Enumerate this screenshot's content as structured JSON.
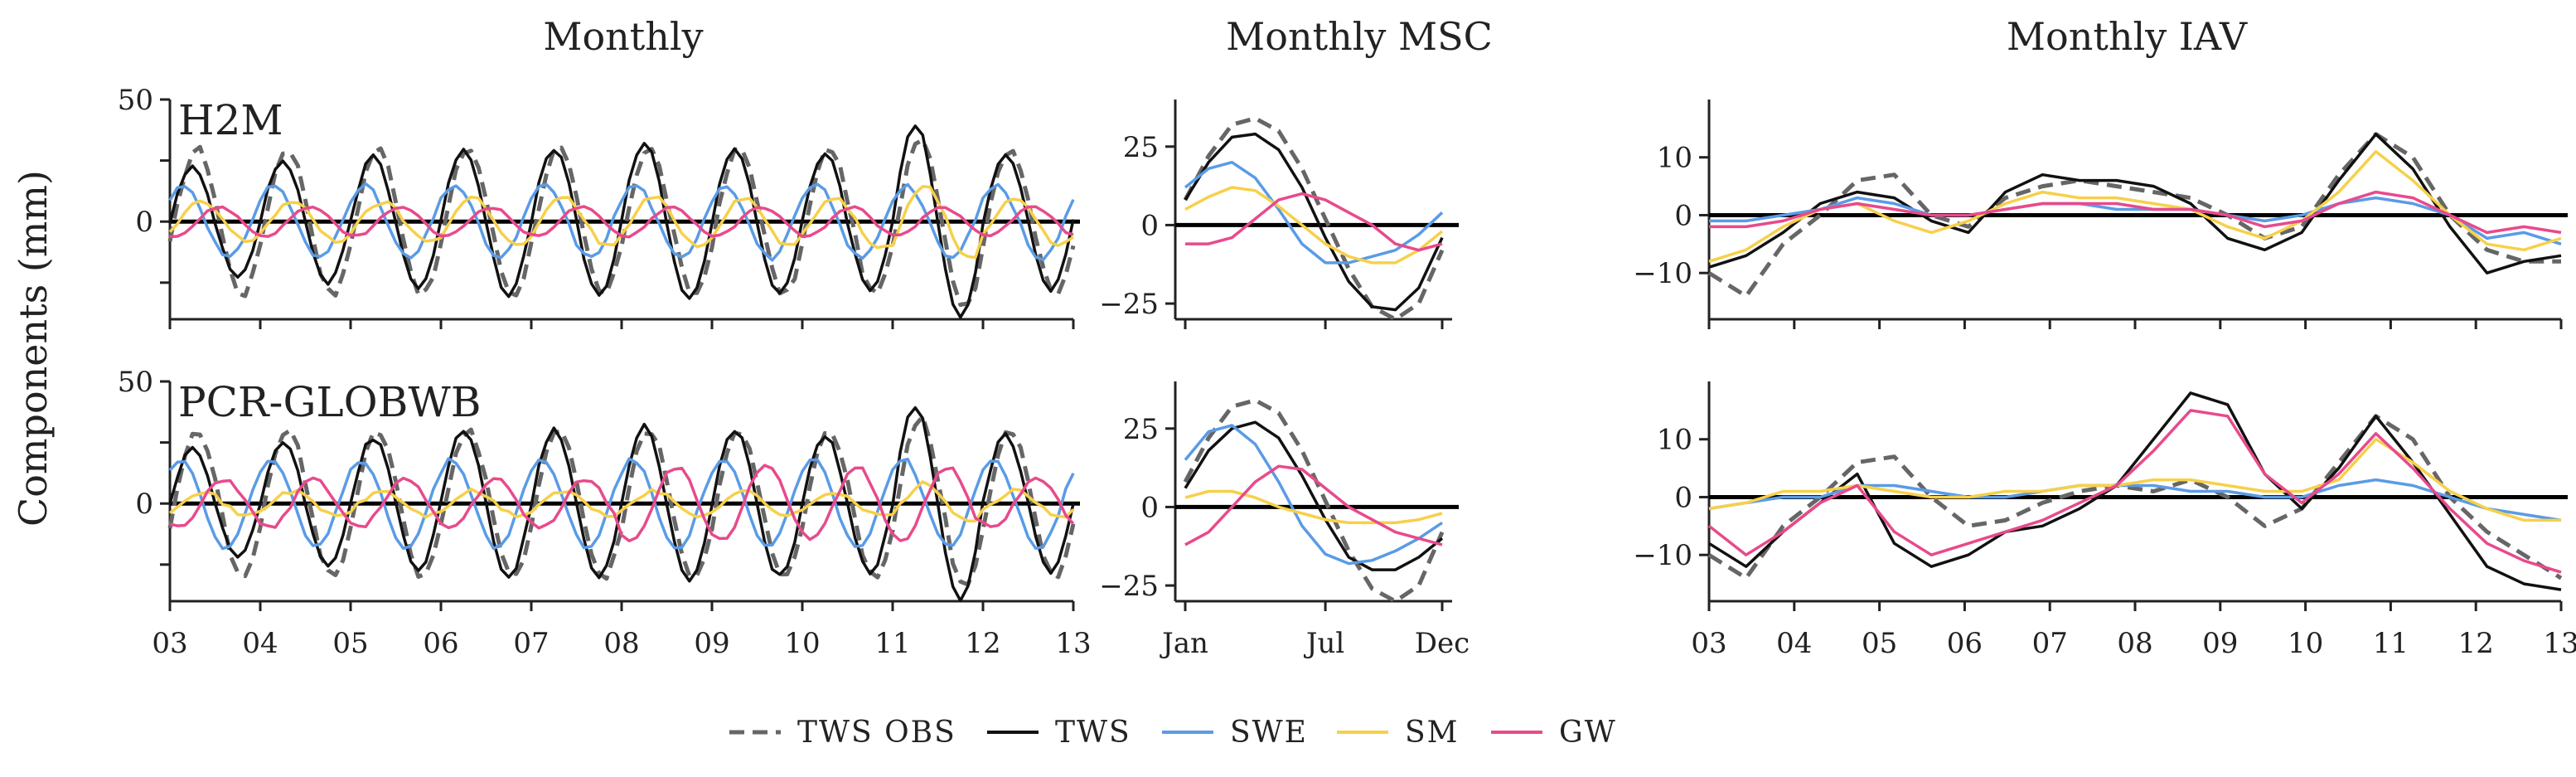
{
  "figure": {
    "ylabel": "Components (mm)",
    "columns": [
      "Monthly",
      "Monthly MSC",
      "Monthly IAV"
    ],
    "rows": [
      "H2M",
      "PCR-GLOBWB"
    ]
  },
  "legend": {
    "placement": "bottom-center",
    "entries": [
      {
        "label": "TWS OBS",
        "color": "#666666",
        "dash": true
      },
      {
        "label": "TWS",
        "color": "#111111",
        "dash": false
      },
      {
        "label": "SWE",
        "color": "#5a9be6",
        "dash": false
      },
      {
        "label": "SM",
        "color": "#f7d04a",
        "dash": false
      },
      {
        "label": "GW",
        "color": "#e84a8c",
        "dash": false
      }
    ]
  },
  "chart_data": [
    {
      "type": "line",
      "title": "Monthly",
      "panel_label": "H2M",
      "xticks": [
        "03",
        "04",
        "05",
        "06",
        "07",
        "08",
        "09",
        "10",
        "11",
        "12",
        "13"
      ],
      "xlim": [
        2003,
        2013
      ],
      "ylim": [
        -40,
        50
      ],
      "yticks": [
        -25,
        0,
        25,
        50
      ],
      "ytick_labels": [
        "",
        "0",
        "",
        "50"
      ],
      "series": [
        {
          "name": "TWS OBS",
          "amp": [
            30,
            30,
            30,
            30,
            30,
            30,
            30,
            30,
            35,
            30
          ],
          "phase": 0.3,
          "noise": 3
        },
        {
          "name": "TWS",
          "amp": [
            22,
            25,
            27,
            30,
            30,
            32,
            30,
            28,
            40,
            28
          ],
          "phase": 0.25,
          "noise": 2
        },
        {
          "name": "SWE",
          "amp": [
            15,
            15,
            15,
            15,
            15,
            15,
            15,
            15,
            15,
            15
          ],
          "phase": 0.15,
          "noise": 2
        },
        {
          "name": "SM",
          "amp": [
            8,
            8,
            8,
            10,
            10,
            10,
            10,
            10,
            15,
            10
          ],
          "phase": 0.35,
          "noise": 2
        },
        {
          "name": "GW",
          "amp": [
            6,
            6,
            6,
            6,
            6,
            6,
            6,
            6,
            6,
            6
          ],
          "phase": 0.55,
          "noise": 1
        }
      ]
    },
    {
      "type": "line",
      "title": "Monthly MSC",
      "panel_label": "",
      "xticks": [
        "Jan",
        "Jul",
        "Dec"
      ],
      "ylim": [
        -30,
        40
      ],
      "yticks": [
        -25,
        0,
        25
      ],
      "series": [
        {
          "name": "TWS OBS",
          "values": [
            8,
            22,
            32,
            34,
            30,
            18,
            2,
            -14,
            -26,
            -30,
            -25,
            -8
          ]
        },
        {
          "name": "TWS",
          "values": [
            8,
            20,
            28,
            29,
            24,
            12,
            -4,
            -18,
            -26,
            -27,
            -20,
            -4
          ]
        },
        {
          "name": "SWE",
          "values": [
            12,
            18,
            20,
            15,
            5,
            -6,
            -12,
            -12,
            -10,
            -8,
            -3,
            4
          ]
        },
        {
          "name": "SM",
          "values": [
            5,
            9,
            12,
            11,
            6,
            0,
            -6,
            -10,
            -12,
            -12,
            -8,
            -2
          ]
        },
        {
          "name": "GW",
          "values": [
            -6,
            -6,
            -4,
            2,
            8,
            10,
            8,
            4,
            0,
            -6,
            -8,
            -6
          ]
        }
      ]
    },
    {
      "type": "line",
      "title": "Monthly IAV",
      "panel_label": "",
      "xticks": [
        "03",
        "04",
        "05",
        "06",
        "07",
        "08",
        "09",
        "10",
        "11",
        "12",
        "13"
      ],
      "xlim": [
        2003,
        2013
      ],
      "ylim": [
        -18,
        20
      ],
      "yticks": [
        -10,
        0,
        10
      ],
      "series": [
        {
          "name": "TWS OBS",
          "values": [
            -10,
            -14,
            -5,
            0,
            6,
            7,
            0,
            -2,
            3,
            5,
            6,
            5,
            4,
            3,
            0,
            -4,
            -2,
            7,
            14,
            10,
            0,
            -6,
            -8,
            -8
          ]
        },
        {
          "name": "TWS",
          "values": [
            -9,
            -7,
            -3,
            2,
            4,
            3,
            -1,
            -3,
            4,
            7,
            6,
            6,
            5,
            2,
            -4,
            -6,
            -3,
            6,
            14,
            8,
            -2,
            -10,
            -8,
            -7
          ]
        },
        {
          "name": "SWE",
          "values": [
            -1,
            -1,
            0,
            1,
            3,
            2,
            0,
            0,
            1,
            2,
            2,
            1,
            1,
            1,
            0,
            -1,
            0,
            2,
            3,
            2,
            0,
            -4,
            -3,
            -5
          ]
        },
        {
          "name": "SM",
          "values": [
            -8,
            -6,
            -2,
            1,
            2,
            -1,
            -3,
            -1,
            2,
            4,
            3,
            3,
            2,
            1,
            -2,
            -4,
            -1,
            4,
            11,
            6,
            0,
            -5,
            -6,
            -4
          ]
        },
        {
          "name": "GW",
          "values": [
            -2,
            -2,
            -1,
            1,
            2,
            1,
            0,
            0,
            1,
            2,
            2,
            2,
            1,
            1,
            0,
            -2,
            -1,
            2,
            4,
            3,
            0,
            -3,
            -2,
            -3
          ]
        }
      ]
    },
    {
      "type": "line",
      "title": "",
      "panel_label": "PCR-GLOBWB",
      "xticks": [
        "03",
        "04",
        "05",
        "06",
        "07",
        "08",
        "09",
        "10",
        "11",
        "12",
        "13"
      ],
      "xlim": [
        2003,
        2013
      ],
      "ylim": [
        -40,
        50
      ],
      "yticks": [
        -25,
        0,
        25,
        50
      ],
      "ytick_labels": [
        "",
        "0",
        "",
        "50"
      ],
      "series": [
        {
          "name": "TWS OBS",
          "amp": [
            30,
            30,
            30,
            30,
            30,
            30,
            30,
            30,
            35,
            30
          ],
          "phase": 0.3,
          "noise": 3
        },
        {
          "name": "TWS",
          "amp": [
            22,
            25,
            27,
            30,
            30,
            32,
            30,
            28,
            40,
            28
          ],
          "phase": 0.25,
          "noise": 2
        },
        {
          "name": "SWE",
          "amp": [
            18,
            18,
            18,
            18,
            18,
            18,
            18,
            18,
            18,
            18
          ],
          "phase": 0.12,
          "noise": 2
        },
        {
          "name": "SM",
          "amp": [
            5,
            5,
            5,
            5,
            5,
            5,
            5,
            5,
            8,
            5
          ],
          "phase": 0.35,
          "noise": 2
        },
        {
          "name": "GW",
          "amp": [
            10,
            10,
            10,
            10,
            10,
            15,
            15,
            15,
            15,
            10
          ],
          "phase": 0.6,
          "noise": 2
        }
      ]
    },
    {
      "type": "line",
      "title": "",
      "panel_label": "",
      "xticks": [
        "Jan",
        "Jul",
        "Dec"
      ],
      "ylim": [
        -30,
        40
      ],
      "yticks": [
        -25,
        0,
        25
      ],
      "series": [
        {
          "name": "TWS OBS",
          "values": [
            8,
            22,
            32,
            34,
            30,
            18,
            2,
            -14,
            -26,
            -30,
            -25,
            -8
          ]
        },
        {
          "name": "TWS",
          "values": [
            6,
            18,
            25,
            27,
            22,
            10,
            -4,
            -16,
            -20,
            -20,
            -16,
            -10
          ]
        },
        {
          "name": "SWE",
          "values": [
            15,
            24,
            26,
            20,
            8,
            -6,
            -15,
            -18,
            -17,
            -14,
            -10,
            -5
          ]
        },
        {
          "name": "SM",
          "values": [
            3,
            5,
            5,
            3,
            0,
            -2,
            -4,
            -5,
            -5,
            -5,
            -4,
            -2
          ]
        },
        {
          "name": "GW",
          "values": [
            -12,
            -8,
            0,
            8,
            13,
            12,
            6,
            0,
            -4,
            -8,
            -10,
            -12
          ]
        }
      ]
    },
    {
      "type": "line",
      "title": "",
      "panel_label": "",
      "xticks": [
        "03",
        "04",
        "05",
        "06",
        "07",
        "08",
        "09",
        "10",
        "11",
        "12",
        "13"
      ],
      "xlim": [
        2003,
        2013
      ],
      "ylim": [
        -18,
        20
      ],
      "yticks": [
        -10,
        0,
        10
      ],
      "series": [
        {
          "name": "TWS OBS",
          "values": [
            -10,
            -14,
            -5,
            0,
            6,
            7,
            0,
            -5,
            -4,
            -1,
            1,
            2,
            1,
            3,
            0,
            -5,
            -2,
            6,
            14,
            10,
            0,
            -6,
            -10,
            -14
          ]
        },
        {
          "name": "TWS",
          "values": [
            -8,
            -12,
            -6,
            -1,
            4,
            -8,
            -12,
            -10,
            -6,
            -5,
            -2,
            2,
            10,
            18,
            16,
            4,
            -2,
            5,
            14,
            6,
            -3,
            -12,
            -15,
            -16
          ]
        },
        {
          "name": "SWE",
          "values": [
            -2,
            -1,
            0,
            0,
            2,
            2,
            1,
            0,
            0,
            1,
            2,
            2,
            2,
            1,
            1,
            0,
            0,
            2,
            3,
            2,
            0,
            -2,
            -3,
            -4
          ]
        },
        {
          "name": "SM",
          "values": [
            -2,
            -1,
            1,
            1,
            2,
            1,
            0,
            0,
            1,
            1,
            2,
            2,
            3,
            3,
            2,
            1,
            1,
            3,
            10,
            6,
            1,
            -2,
            -4,
            -4
          ]
        },
        {
          "name": "GW",
          "values": [
            -5,
            -10,
            -6,
            -1,
            2,
            -6,
            -10,
            -8,
            -6,
            -4,
            -1,
            2,
            8,
            15,
            14,
            4,
            -1,
            4,
            11,
            5,
            -2,
            -8,
            -11,
            -13
          ]
        }
      ]
    }
  ]
}
